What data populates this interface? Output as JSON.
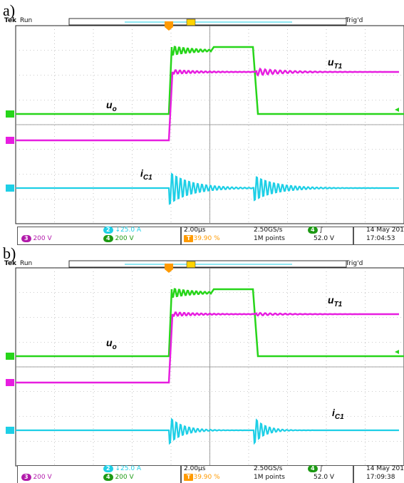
{
  "colors": {
    "green": "#27d51a",
    "magenta": "#e71ee0",
    "cyan": "#1ecfe6",
    "orange": "#ff9a00",
    "grid": "#9a9a9a"
  },
  "panels": [
    {
      "label": "a)",
      "tek": "Tek",
      "run": "Run",
      "trig": "Trig'd",
      "trigger_marker": "T",
      "labels": {
        "uo": "u",
        "uo_sub": "o",
        "ut1": "u",
        "ut1_sub": "T1",
        "ic1": "i",
        "ic1_sub": "C1"
      },
      "ch2_scale": "25.0 A",
      "ch3_scale": "200 V",
      "ch4_scale": "200 V",
      "timebase": "2.00µs",
      "trigger_pos": "39.90 %",
      "sample_rate": "2.50GS/s",
      "record": "1M points",
      "trig_channel": "4",
      "trig_level": "52.0 V",
      "date": "14 May 201",
      "time": "17:04:53"
    },
    {
      "label": "b)",
      "tek": "Tek",
      "run": "Run",
      "trig": "Trig'd",
      "trigger_marker": "T",
      "labels": {
        "uo": "u",
        "uo_sub": "o",
        "ut1": "u",
        "ut1_sub": "T1",
        "ic1": "i",
        "ic1_sub": "C1"
      },
      "ch2_scale": "25.0 A",
      "ch3_scale": "200 V",
      "ch4_scale": "200 V",
      "timebase": "2.00µs",
      "trigger_pos": "39.90 %",
      "sample_rate": "2.50GS/s",
      "record": "1M points",
      "trig_channel": "4",
      "trig_level": "52.0 V",
      "date": "14 May 201",
      "time": "17:09:38"
    }
  ]
}
